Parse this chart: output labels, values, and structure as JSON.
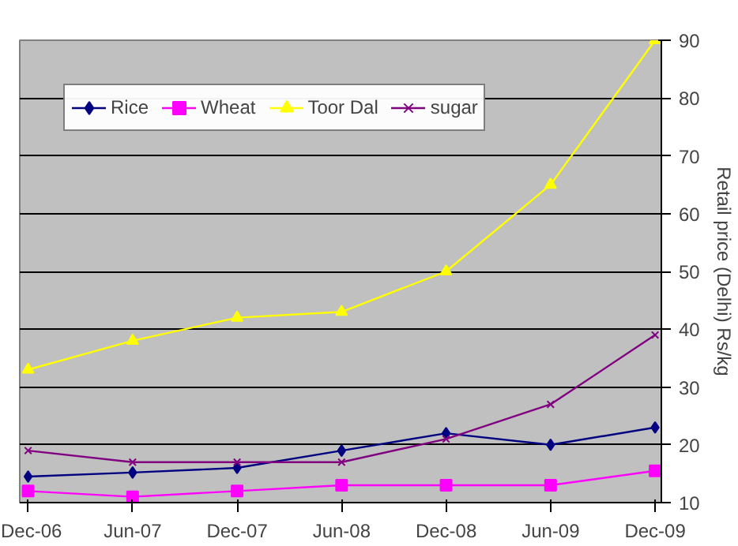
{
  "chart_data": {
    "type": "line",
    "categories": [
      "Dec-06",
      "Jun-07",
      "Dec-07",
      "Jun-08",
      "Dec-08",
      "Jun-09",
      "Dec-09"
    ],
    "ylabel": "Retail price (Delhi) Rs/kg",
    "ylim": [
      10,
      90
    ],
    "yticks": [
      10,
      20,
      30,
      40,
      50,
      60,
      70,
      80,
      90
    ],
    "grid": "y",
    "legend": "top left",
    "series": [
      {
        "name": "Rice",
        "color": "#000080",
        "marker": "diamond",
        "values": [
          14.5,
          15.2,
          16,
          19,
          22,
          20,
          23
        ]
      },
      {
        "name": "Wheat",
        "color": "#ff00ff",
        "marker": "square",
        "values": [
          12,
          11,
          12,
          13,
          13,
          13,
          15.5
        ]
      },
      {
        "name": "Toor Dal",
        "color": "#ffff00",
        "marker": "triangle",
        "values": [
          33,
          38,
          42,
          43,
          50,
          65,
          90
        ]
      },
      {
        "name": "sugar",
        "color": "#800080",
        "marker": "cross",
        "values": [
          19,
          17,
          17,
          17,
          21,
          27,
          39
        ]
      }
    ]
  }
}
